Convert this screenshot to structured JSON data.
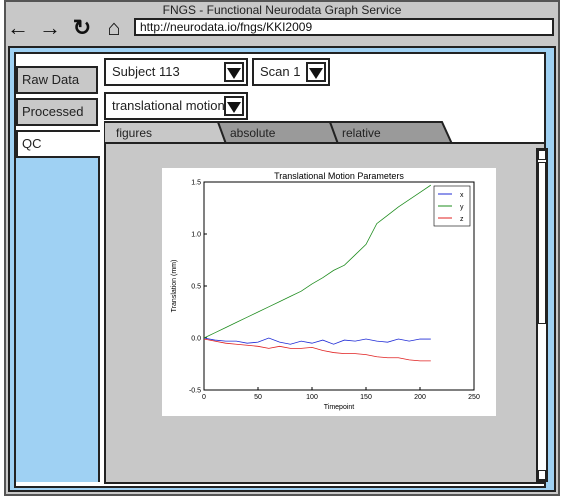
{
  "window": {
    "title": "FNGS - Functional Neurodata Graph Service"
  },
  "nav": {
    "url": "http://neurodata.io/fngs/KKI2009",
    "back": "←",
    "forward": "→",
    "reload": "↻",
    "home": "⌂"
  },
  "sidebar": {
    "items": [
      {
        "label": "Raw Data"
      },
      {
        "label": "Processed"
      },
      {
        "label": "QC"
      }
    ]
  },
  "selectors": {
    "subject": "Subject 113",
    "scan": "Scan 1",
    "metric": "translational motion"
  },
  "tabs": [
    {
      "label": "figures"
    },
    {
      "label": "absolute"
    },
    {
      "label": "relative"
    }
  ],
  "colors": {
    "x": "#1f2bd6",
    "y": "#1e8c1e",
    "z": "#e02020"
  },
  "chart_data": {
    "type": "line",
    "title": "Translational Motion Parameters",
    "xlabel": "Timepoint",
    "ylabel": "Translation (mm)",
    "xlim": [
      0,
      250
    ],
    "ylim": [
      -0.5,
      1.5
    ],
    "xticks": [
      "0",
      "50",
      "100",
      "150",
      "200",
      "250"
    ],
    "yticks": [
      "-0.5",
      "0.0",
      "0.5",
      "1.0",
      "1.5"
    ],
    "legend_position": "top-right",
    "x": [
      0,
      10,
      20,
      30,
      40,
      50,
      60,
      70,
      80,
      90,
      100,
      110,
      120,
      130,
      140,
      150,
      160,
      170,
      180,
      190,
      200,
      210
    ],
    "series": [
      {
        "name": "x",
        "values": [
          0.0,
          -0.02,
          -0.03,
          -0.03,
          -0.05,
          -0.04,
          0.0,
          -0.04,
          -0.06,
          -0.03,
          -0.05,
          -0.02,
          -0.06,
          -0.02,
          -0.03,
          -0.01,
          -0.03,
          -0.04,
          -0.01,
          -0.03,
          -0.01,
          -0.01
        ]
      },
      {
        "name": "y",
        "values": [
          0.0,
          0.05,
          0.1,
          0.15,
          0.2,
          0.25,
          0.3,
          0.35,
          0.4,
          0.45,
          0.52,
          0.58,
          0.65,
          0.7,
          0.8,
          0.9,
          1.1,
          1.18,
          1.26,
          1.33,
          1.4,
          1.47
        ]
      },
      {
        "name": "z",
        "values": [
          -0.01,
          -0.03,
          -0.05,
          -0.06,
          -0.07,
          -0.08,
          -0.1,
          -0.08,
          -0.1,
          -0.1,
          -0.09,
          -0.12,
          -0.14,
          -0.15,
          -0.15,
          -0.16,
          -0.18,
          -0.19,
          -0.19,
          -0.21,
          -0.22,
          -0.22
        ]
      }
    ]
  }
}
